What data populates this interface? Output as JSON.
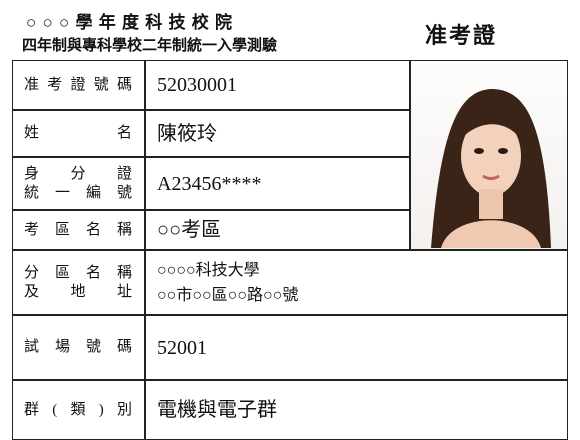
{
  "header": {
    "title_line1": "○ ○ ○ 學 年 度 科 技 校 院",
    "title_line2": "四年制與專科學校二年制統一入學測驗",
    "doc_type": "准考證"
  },
  "table": {
    "rows": [
      {
        "label": [
          "准考證號碼"
        ],
        "value": [
          "52030001"
        ]
      },
      {
        "label": [
          "姓名"
        ],
        "value": [
          "陳筱玲"
        ]
      },
      {
        "label": [
          "身分證",
          "統一編號"
        ],
        "value": [
          "A23456****"
        ]
      },
      {
        "label": [
          "考區名稱"
        ],
        "value": [
          "○○考區"
        ]
      },
      {
        "label": [
          "分區名稱",
          "及地址"
        ],
        "value": [
          "○○○○科技大學",
          "○○市○○區○○路○○號"
        ]
      },
      {
        "label": [
          "試場號碼"
        ],
        "value": [
          "52001"
        ]
      },
      {
        "label": [
          "群(類)別"
        ],
        "value": [
          "電機與電子群"
        ]
      }
    ]
  }
}
